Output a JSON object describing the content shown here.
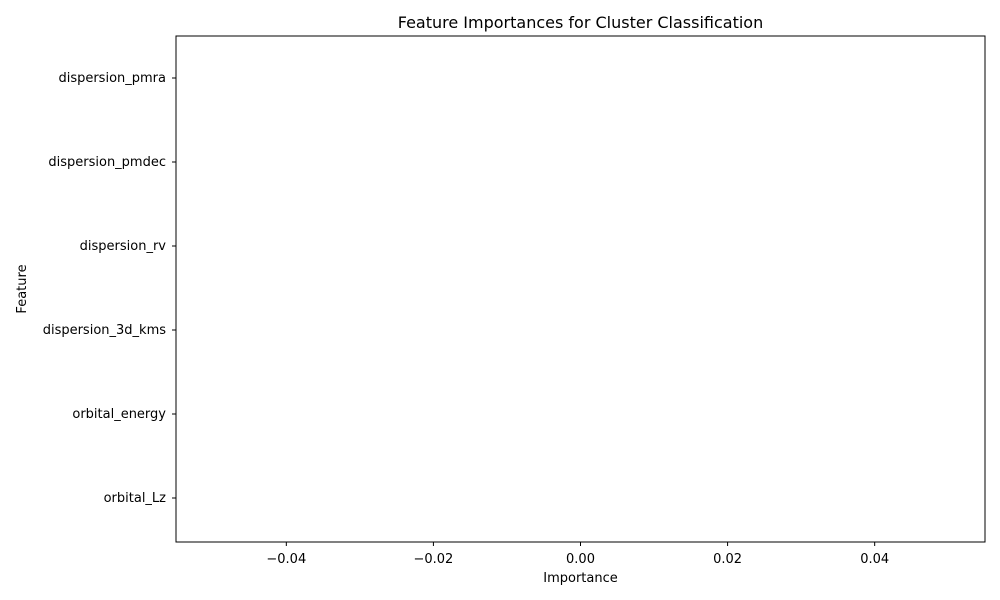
{
  "chart_data": {
    "type": "bar",
    "orientation": "horizontal",
    "title": "Feature Importances for Cluster Classification",
    "xlabel": "Importance",
    "ylabel": "Feature",
    "categories": [
      "dispersion_pmra",
      "dispersion_pmdec",
      "dispersion_rv",
      "dispersion_3d_kms",
      "orbital_energy",
      "orbital_Lz"
    ],
    "values": [
      0,
      0,
      0,
      0,
      0,
      0
    ],
    "xlim": [
      -0.055,
      0.055
    ],
    "xticks": [
      -0.04,
      -0.02,
      0.0,
      0.02,
      0.04
    ],
    "xtick_labels": [
      "−0.04",
      "−0.02",
      "0.00",
      "0.02",
      "0.04"
    ],
    "grid": false,
    "legend": "none"
  }
}
